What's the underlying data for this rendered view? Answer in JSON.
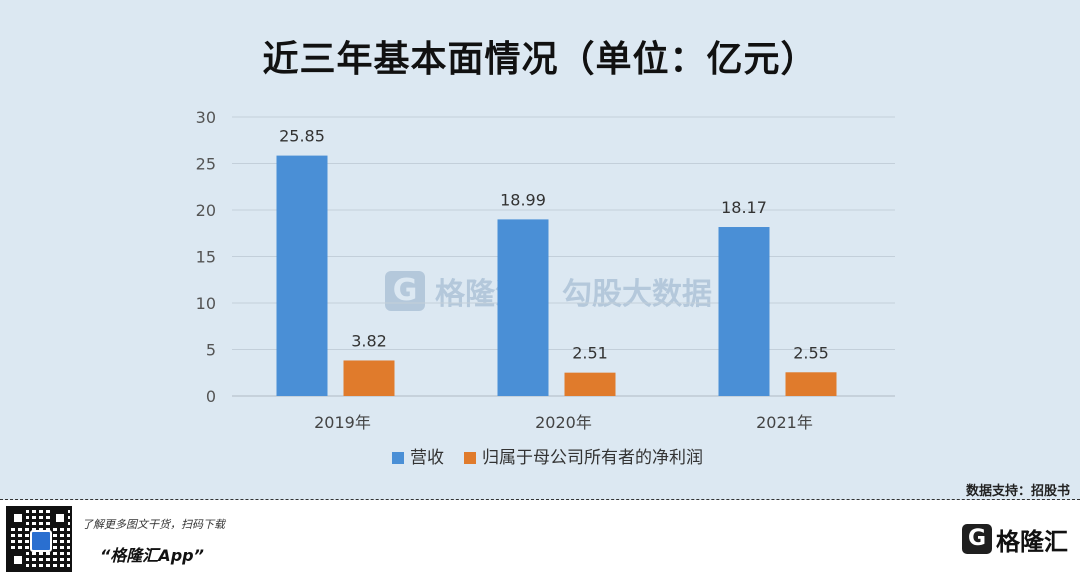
{
  "title": "近三年基本面情况（单位：亿元）",
  "source": "数据支持：招股书",
  "footer": {
    "promo": "了解更多图文干货，扫码下载",
    "app_name": "“格隆汇App”",
    "brand_name": "格隆汇",
    "brand_mark": "G"
  },
  "watermark": {
    "logo": "G",
    "name": "格隆汇",
    "sub": "勾股大数据"
  },
  "colors": {
    "background": "#dce8f2",
    "revenue": "#4a8fd6",
    "net_profit": "#e07b2c",
    "gridline": "#c3cfda",
    "axis": "#b0bac4"
  },
  "chart_data": {
    "type": "bar",
    "categories": [
      "2019年",
      "2020年",
      "2021年"
    ],
    "series": [
      {
        "name": "营收",
        "values": [
          25.85,
          18.99,
          18.17
        ]
      },
      {
        "name": "归属于母公司所有者的净利润",
        "values": [
          3.82,
          2.51,
          2.55
        ]
      }
    ],
    "ylim": [
      0,
      30
    ],
    "yticks": [
      0,
      5,
      10,
      15,
      20,
      25,
      30
    ],
    "grid": true,
    "legend": "bottom",
    "xlabel": "",
    "ylabel": ""
  }
}
